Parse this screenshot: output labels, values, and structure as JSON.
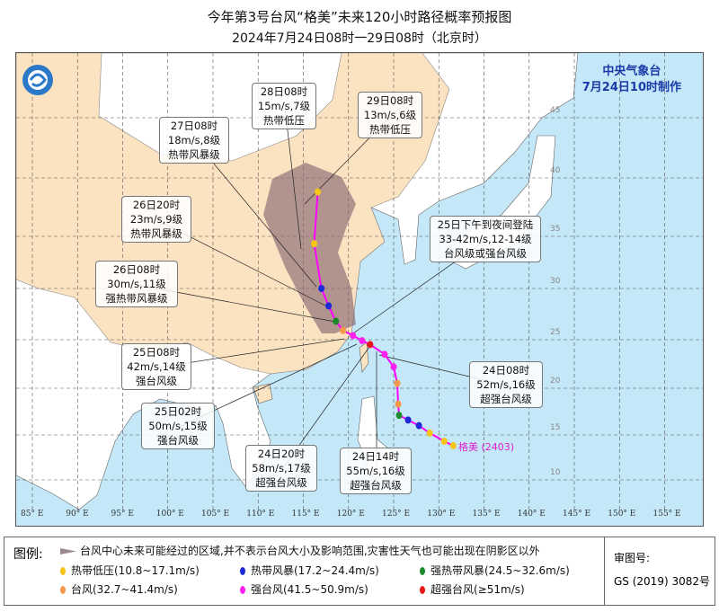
{
  "header": {
    "title": "今年第3号台风“格美”未来120小时路径概率预报图",
    "subtitle": "2024年7月24日08时一29日08时（北京时）"
  },
  "agency": {
    "name": "中央气象台",
    "issued": "7月24日10时制作"
  },
  "storm_label": {
    "name": "格美",
    "number": "(2403)"
  },
  "colors": {
    "ocean": "#c4e8f8",
    "land_china": "#fbe2c0",
    "land_other": "#ffffff",
    "cone": "#8a6a74",
    "track": "#ff00ff",
    "td": "#f5c518",
    "ts": "#1c2bd6",
    "sts": "#1a8a2a",
    "ty": "#f59a4a",
    "sty": "#ff22ee",
    "supty": "#e81818"
  },
  "axes": {
    "lon_ticks": [
      "85° E",
      "90° E",
      "95° E",
      "100° E",
      "105° E",
      "110° E",
      "115° E",
      "120° E",
      "125° E",
      "130° E",
      "135° E",
      "140° E",
      "145° E",
      "150° E",
      "155° E"
    ],
    "lat_ticks": [
      "10",
      "15",
      "20",
      "25",
      "30",
      "35",
      "40",
      "45"
    ]
  },
  "track": [
    {
      "lon": 131.6,
      "lat": 13.8,
      "cat": "td"
    },
    {
      "lon": 130.6,
      "lat": 14.3,
      "cat": "td"
    },
    {
      "lon": 129.0,
      "lat": 15.2,
      "cat": "td"
    },
    {
      "lon": 127.8,
      "lat": 16.0,
      "cat": "ts"
    },
    {
      "lon": 126.6,
      "lat": 16.6,
      "cat": "ts"
    },
    {
      "lon": 125.6,
      "lat": 17.1,
      "cat": "sts"
    },
    {
      "lon": 125.5,
      "lat": 18.3,
      "cat": "ty"
    },
    {
      "lon": 125.4,
      "lat": 20.5,
      "cat": "ty"
    },
    {
      "lon": 125.0,
      "lat": 22.2,
      "cat": "sty"
    },
    {
      "lon": 124.0,
      "lat": 23.5,
      "cat": "sty"
    },
    {
      "lon": 122.4,
      "lat": 24.5,
      "cat": "supty"
    },
    {
      "lon": 121.5,
      "lat": 24.9,
      "cat": "sty"
    },
    {
      "lon": 120.5,
      "lat": 25.4,
      "cat": "sty"
    },
    {
      "lon": 119.4,
      "lat": 25.9,
      "cat": "ty"
    },
    {
      "lon": 118.6,
      "lat": 26.8,
      "cat": "sts"
    },
    {
      "lon": 117.8,
      "lat": 28.3,
      "cat": "ts"
    },
    {
      "lon": 117.0,
      "lat": 30.0,
      "cat": "ts"
    },
    {
      "lon": 116.2,
      "lat": 34.3,
      "cat": "td"
    },
    {
      "lon": 116.6,
      "lat": 38.8,
      "cat": "td"
    }
  ],
  "callouts": [
    {
      "time": "28日08时",
      "wind": "15m/s,7级",
      "level": "热带低压"
    },
    {
      "time": "29日08时",
      "wind": "13m/s,6级",
      "level": "热带低压"
    },
    {
      "time": "27日08时",
      "wind": "18m/s,8级",
      "level": "热带风暴级"
    },
    {
      "time": "26日20时",
      "wind": "23m/s,9级",
      "level": "热带风暴级"
    },
    {
      "time": "26日08时",
      "wind": "30m/s,11级",
      "level": "强热带风暴级"
    },
    {
      "time": "25日下午到夜间登陆",
      "wind": "33-42m/s,12-14级",
      "level": "台风级或强台风级"
    },
    {
      "time": "25日08时",
      "wind": "42m/s,14级",
      "level": "强台风级"
    },
    {
      "time": "25日02时",
      "wind": "50m/s,15级",
      "level": "强台风级"
    },
    {
      "time": "24日20时",
      "wind": "58m/s,17级",
      "level": "超强台风级"
    },
    {
      "time": "24日14时",
      "wind": "55m/s,16级",
      "level": "超强台风级"
    },
    {
      "time": "24日08时",
      "wind": "52m/s,16级",
      "level": "超强台风级"
    }
  ],
  "legend": {
    "heading": "图例:",
    "cone_text": "台风中心未来可能经过的区域,并不表示台风大小及影响范围,灾害性天气也可能出现在阴影区以外",
    "items": [
      {
        "label": "热带低压(10.8~17.1m/s)",
        "cat": "td"
      },
      {
        "label": "热带风暴(17.2~24.4m/s)",
        "cat": "ts"
      },
      {
        "label": "强热带风暴(24.5~32.6m/s)",
        "cat": "sts"
      },
      {
        "label": "台风(32.7~41.4m/s)",
        "cat": "ty"
      },
      {
        "label": "强台风(41.5~50.9m/s)",
        "cat": "sty"
      },
      {
        "label": "超强台风(≥51m/s)",
        "cat": "supty"
      }
    ],
    "approval_label": "审图号:",
    "approval_no": "GS (2019) 3082号"
  }
}
